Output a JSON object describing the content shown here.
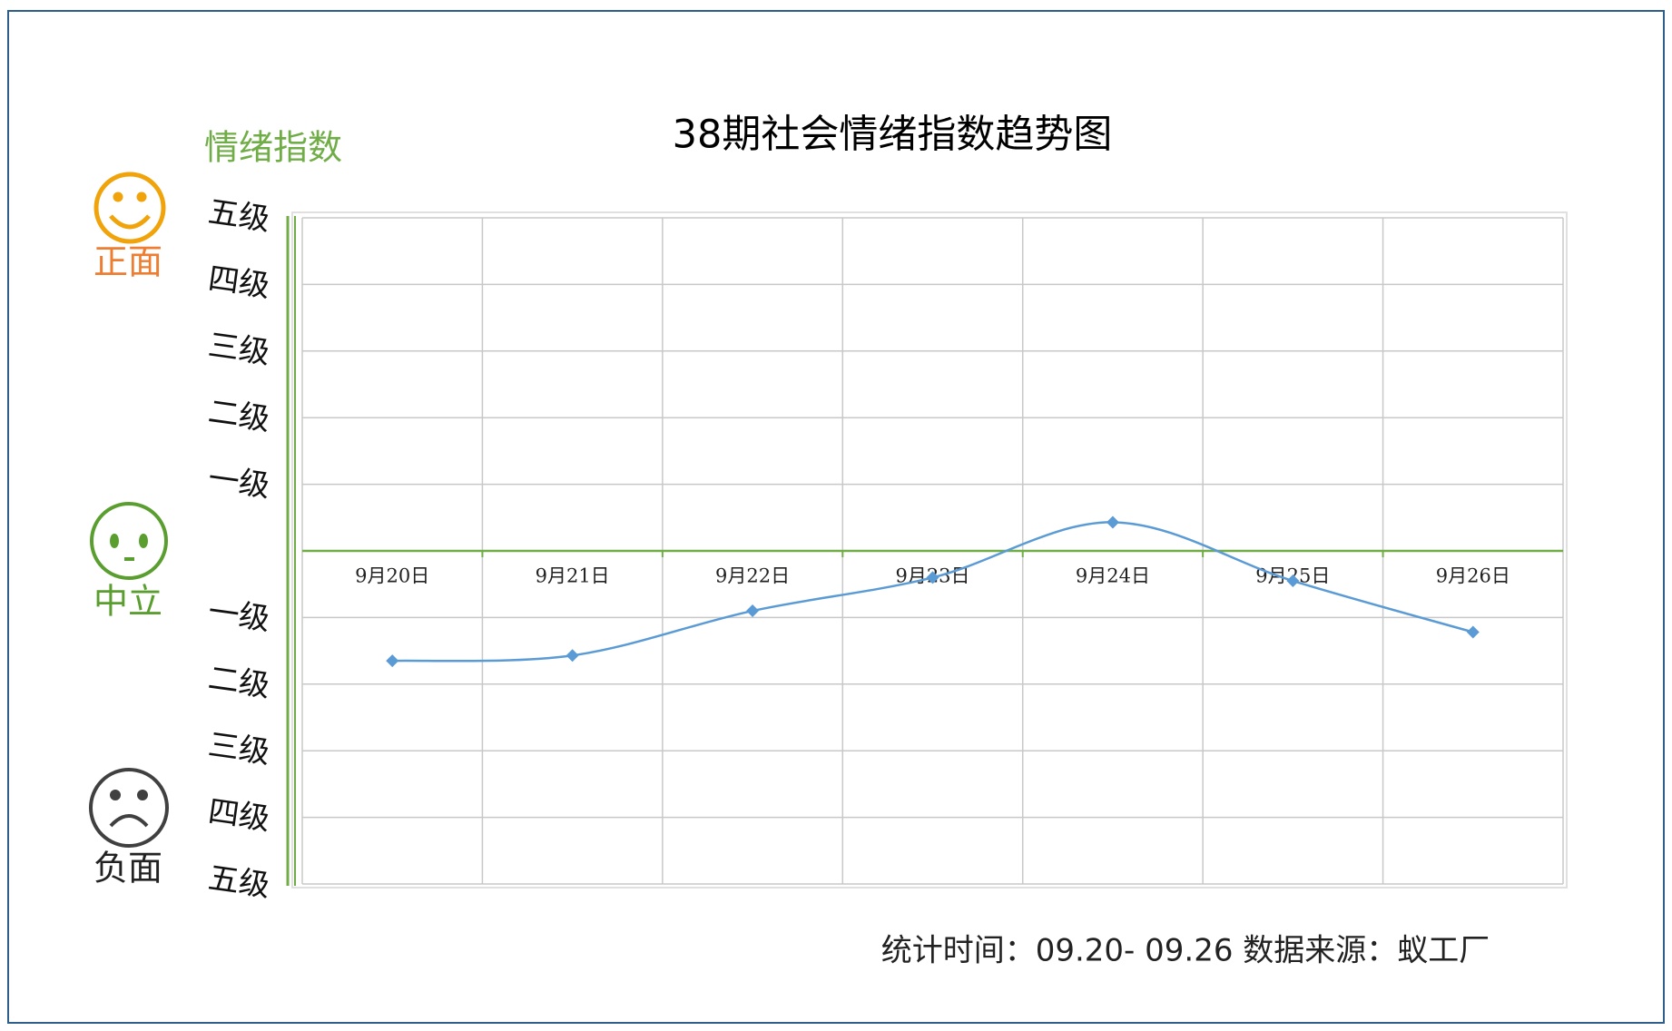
{
  "chart_data": {
    "type": "line",
    "title": "38期社会情绪指数趋势图",
    "y_axis_label": "情绪指数",
    "annotations": [
      "正面",
      "中立",
      "负面"
    ],
    "footer": "统计时间：09.20- 09.26 数据来源：蚁工厂",
    "categories": [
      "9月20日",
      "9月21日",
      "9月22日",
      "9月23日",
      "9月24日",
      "9月25日",
      "9月26日"
    ],
    "series": [
      {
        "name": "情绪指数",
        "color": "#5b9bd5",
        "values": [
          -1.65,
          -1.57,
          -0.9,
          -0.4,
          0.43,
          -0.45,
          -1.22
        ]
      }
    ],
    "ylim": [
      -5,
      5
    ],
    "yticks": [
      {
        "value": 5,
        "label": "五级"
      },
      {
        "value": 4,
        "label": "四级"
      },
      {
        "value": 3,
        "label": "三级"
      },
      {
        "value": 2,
        "label": "二级"
      },
      {
        "value": 1,
        "label": "一级"
      },
      {
        "value": -1,
        "label": "一级"
      },
      {
        "value": -2,
        "label": "二级"
      },
      {
        "value": -3,
        "label": "三级"
      },
      {
        "value": -4,
        "label": "四级"
      },
      {
        "value": -5,
        "label": "五级"
      }
    ],
    "grid": true,
    "smooth": true
  }
}
